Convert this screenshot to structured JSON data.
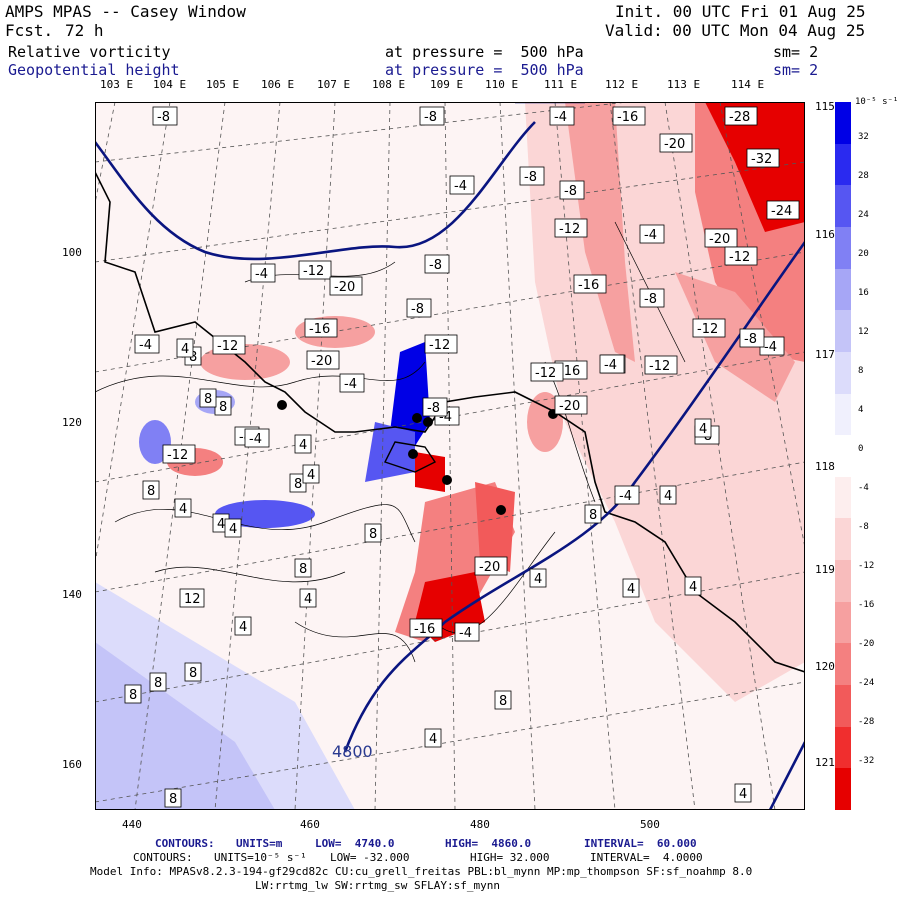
{
  "header": {
    "title": "AMPS MPAS -- Casey Window",
    "fcst_label": "Fcst.",
    "fcst_value": "72 h",
    "init": "Init. 00 UTC Fri 01 Aug 25",
    "valid": "Valid: 00 UTC Mon 04 Aug 25",
    "field1_name": "Relative vorticity",
    "field1_pressure": "at pressure =  500 hPa",
    "field1_sm": "sm= 2",
    "field2_name": "Geopotential height",
    "field2_pressure": "at pressure =  500 hPa",
    "field2_sm": "sm= 2"
  },
  "axes": {
    "top_lon": [
      "103 E",
      "104 E",
      "105 E",
      "106 E",
      "107 E",
      "108 E",
      "109 E",
      "110 E",
      "111 E",
      "112 E",
      "113 E",
      "114 E"
    ],
    "right_lon": [
      "115 E",
      "116 E",
      "117 E",
      "118 E",
      "119 E",
      "120 E",
      "121 E"
    ],
    "x_ticks": [
      "440",
      "460",
      "480",
      "500"
    ],
    "y_ticks": [
      "100",
      "120",
      "140",
      "160"
    ]
  },
  "colorbar": {
    "unit": "10⁻⁵ s⁻¹",
    "labels": [
      "32",
      "28",
      "24",
      "20",
      "16",
      "12",
      "8",
      "4",
      "0",
      "-4",
      "-8",
      "-12",
      "-16",
      "-20",
      "-24",
      "-28",
      "-32"
    ],
    "colors": [
      "#0000e6",
      "#2a2af0",
      "#5656f2",
      "#8080f4",
      "#a6a6f6",
      "#c4c4f8",
      "#dcdcfb",
      "#f0f0fd",
      "#ffffff",
      "#fdeeee",
      "#fbd6d6",
      "#f8bcbc",
      "#f6a0a0",
      "#f48080",
      "#f25a5a",
      "#f02e2e",
      "#e60000"
    ]
  },
  "map_labels": {
    "contour_4800": "4800",
    "vort": [
      "-8",
      "-8",
      "-4",
      "-16",
      "-28",
      "-20",
      "-4",
      "-8",
      "-8",
      "-32",
      "-24",
      "-12",
      "-4",
      "-20",
      "-12",
      "-8",
      "-4",
      "-12",
      "-20",
      "-8",
      "-16",
      "-8",
      "-12",
      "-16",
      "-16",
      "-20",
      "-4",
      "-12",
      "-4",
      "-20",
      "-8",
      "-12",
      "-4",
      "-12",
      "8",
      "-12",
      "-4",
      "-4",
      "4",
      "8",
      "8",
      "-4",
      "-4",
      "4",
      "8",
      "-12",
      "4",
      "-8",
      "-4",
      "-8",
      "4",
      "4",
      "4",
      "12",
      "4",
      "8",
      "-20",
      "4",
      "8",
      "-16",
      "-4",
      "4",
      "8",
      "4",
      "8",
      "4",
      "8",
      "8",
      "4",
      "8",
      "8",
      "8",
      "4",
      "4",
      "-4",
      "4"
    ]
  },
  "footer": {
    "contours1_label": "CONTOURS:",
    "contours1_units": "UNITS=m",
    "contours1_low": "LOW=  4740.0",
    "contours1_high": "HIGH=  4860.0",
    "contours1_interval": "INTERVAL=  60.000",
    "contours2_label": "CONTOURS:",
    "contours2_units": "UNITS=10⁻⁵ s⁻¹",
    "contours2_low": "LOW= -32.000",
    "contours2_high": "HIGH= 32.000",
    "contours2_interval": "INTERVAL=  4.0000",
    "model_info": "Model Info: MPASv8.2.3-194-gf29cd82c CU:cu_grell_freitas PBL:bl_mynn MP:mp_thompson SF:sf_noahmp 8.0",
    "model_info2": "LW:rrtmg_lw SW:rrtmg_sw SFLAY:sf_mynn"
  }
}
